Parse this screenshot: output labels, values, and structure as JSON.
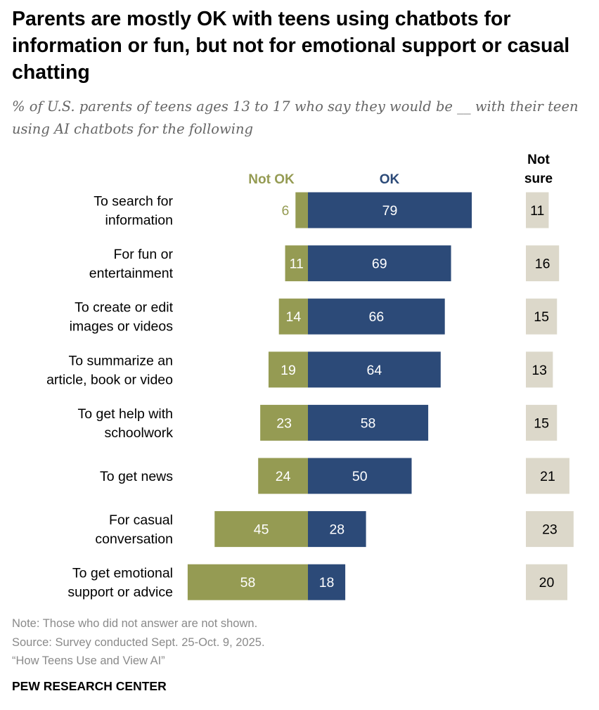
{
  "title": "Parents are mostly OK with teens using chatbots for information or fun, but not for emotional support or casual chatting",
  "subtitle": "% of U.S. parents of teens ages 13 to 17 who say they would be __ with their teen using AI chatbots for the following",
  "notes": {
    "note": "Note: Those who did not answer are not shown.",
    "source": "Source: Survey conducted Sept. 25-Oct. 9, 2025.",
    "report": "“How Teens Use and View AI”"
  },
  "brand": "PEW RESEARCH CENTER",
  "chart_data": {
    "type": "bar",
    "orientation": "horizontal-diverging",
    "categories": [
      [
        "To search for",
        "information"
      ],
      [
        "For fun or",
        "entertainment"
      ],
      [
        "To create or edit",
        "images or videos"
      ],
      [
        "To summarize an",
        "article, book or video"
      ],
      [
        "To get help with",
        "schoolwork"
      ],
      [
        "To get news"
      ],
      [
        "For casual",
        "conversation"
      ],
      [
        "To get emotional",
        "support or advice"
      ]
    ],
    "series": [
      {
        "name": "Not OK",
        "color": "#959b53",
        "values": [
          6,
          11,
          14,
          19,
          23,
          24,
          45,
          58
        ]
      },
      {
        "name": "OK",
        "color": "#2c4a78",
        "values": [
          79,
          69,
          66,
          64,
          58,
          50,
          28,
          18
        ]
      },
      {
        "name": "Not sure",
        "name_lines": [
          "Not",
          "sure"
        ],
        "color": "#dcd8ca",
        "values": [
          11,
          16,
          15,
          13,
          15,
          21,
          23,
          20
        ]
      }
    ]
  }
}
